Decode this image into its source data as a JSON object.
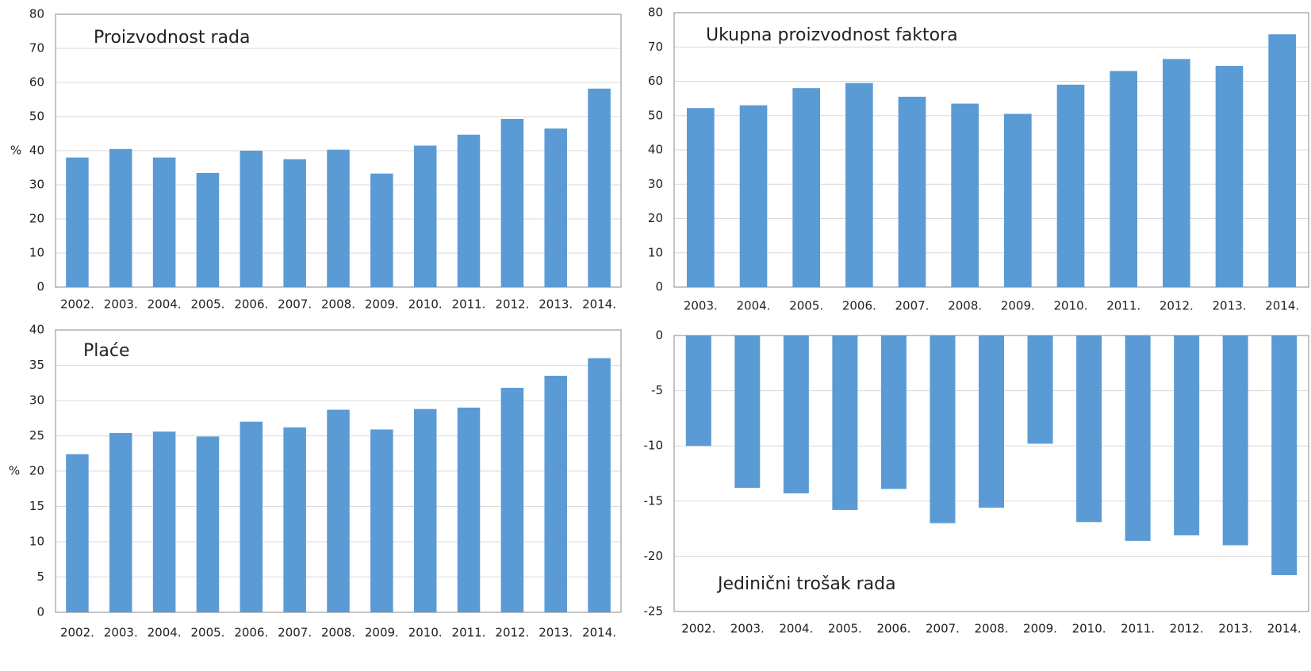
{
  "chart_data": [
    {
      "type": "bar",
      "title": "Proizvodnost rada",
      "y_label": "%",
      "categories": [
        "2002.",
        "2003.",
        "2004.",
        "2005.",
        "2006.",
        "2007.",
        "2008.",
        "2009.",
        "2010.",
        "2011.",
        "2012.",
        "2013.",
        "2014."
      ],
      "values": [
        38,
        40.5,
        38,
        33.5,
        40,
        37.5,
        40.3,
        33.3,
        41.5,
        44.7,
        49.3,
        46.5,
        58.2
      ],
      "color": "#5b9bd5",
      "ylim": [
        0,
        80
      ],
      "yticks": [
        0,
        10,
        20,
        30,
        40,
        50,
        60,
        70,
        80
      ],
      "grid": true
    },
    {
      "type": "bar",
      "title": "Ukupna proizvodnost faktora",
      "categories": [
        "2003.",
        "2004.",
        "2005.",
        "2006.",
        "2007.",
        "2008.",
        "2009.",
        "2010.",
        "2011.",
        "2012.",
        "2013.",
        "2014."
      ],
      "values": [
        52.2,
        53,
        58,
        59.5,
        55.5,
        53.5,
        50.5,
        59,
        63,
        66.5,
        64.5,
        73.7
      ],
      "color": "#5b9bd5",
      "ylim": [
        0,
        80
      ],
      "yticks": [
        0,
        10,
        20,
        30,
        40,
        50,
        60,
        70,
        80
      ],
      "grid": true
    },
    {
      "type": "bar",
      "title": "Plaće",
      "y_label": "%",
      "categories": [
        "2002.",
        "2003.",
        "2004.",
        "2005.",
        "2006.",
        "2007.",
        "2008.",
        "2009.",
        "2010.",
        "2011.",
        "2012.",
        "2013.",
        "2014."
      ],
      "values": [
        22.4,
        25.4,
        25.6,
        24.9,
        27,
        26.2,
        28.7,
        25.9,
        28.8,
        29,
        31.8,
        33.5,
        36
      ],
      "color": "#5b9bd5",
      "ylim": [
        0,
        40
      ],
      "yticks": [
        0,
        5,
        10,
        15,
        20,
        25,
        30,
        35,
        40
      ],
      "grid": true
    },
    {
      "type": "bar",
      "title": "Jedinični trošak rada",
      "categories": [
        "2002.",
        "2003.",
        "2004.",
        "2005.",
        "2006.",
        "2007.",
        "2008.",
        "2009.",
        "2010.",
        "2011.",
        "2012.",
        "2013.",
        "2014."
      ],
      "values": [
        -10,
        -13.8,
        -14.3,
        -15.8,
        -13.9,
        -17,
        -15.6,
        -9.8,
        -16.9,
        -18.6,
        -18.1,
        -19,
        -21.7
      ],
      "color": "#5b9bd5",
      "ylim": [
        -25,
        0
      ],
      "yticks": [
        -25,
        -20,
        -15,
        -10,
        -5,
        0
      ],
      "grid": true
    }
  ]
}
